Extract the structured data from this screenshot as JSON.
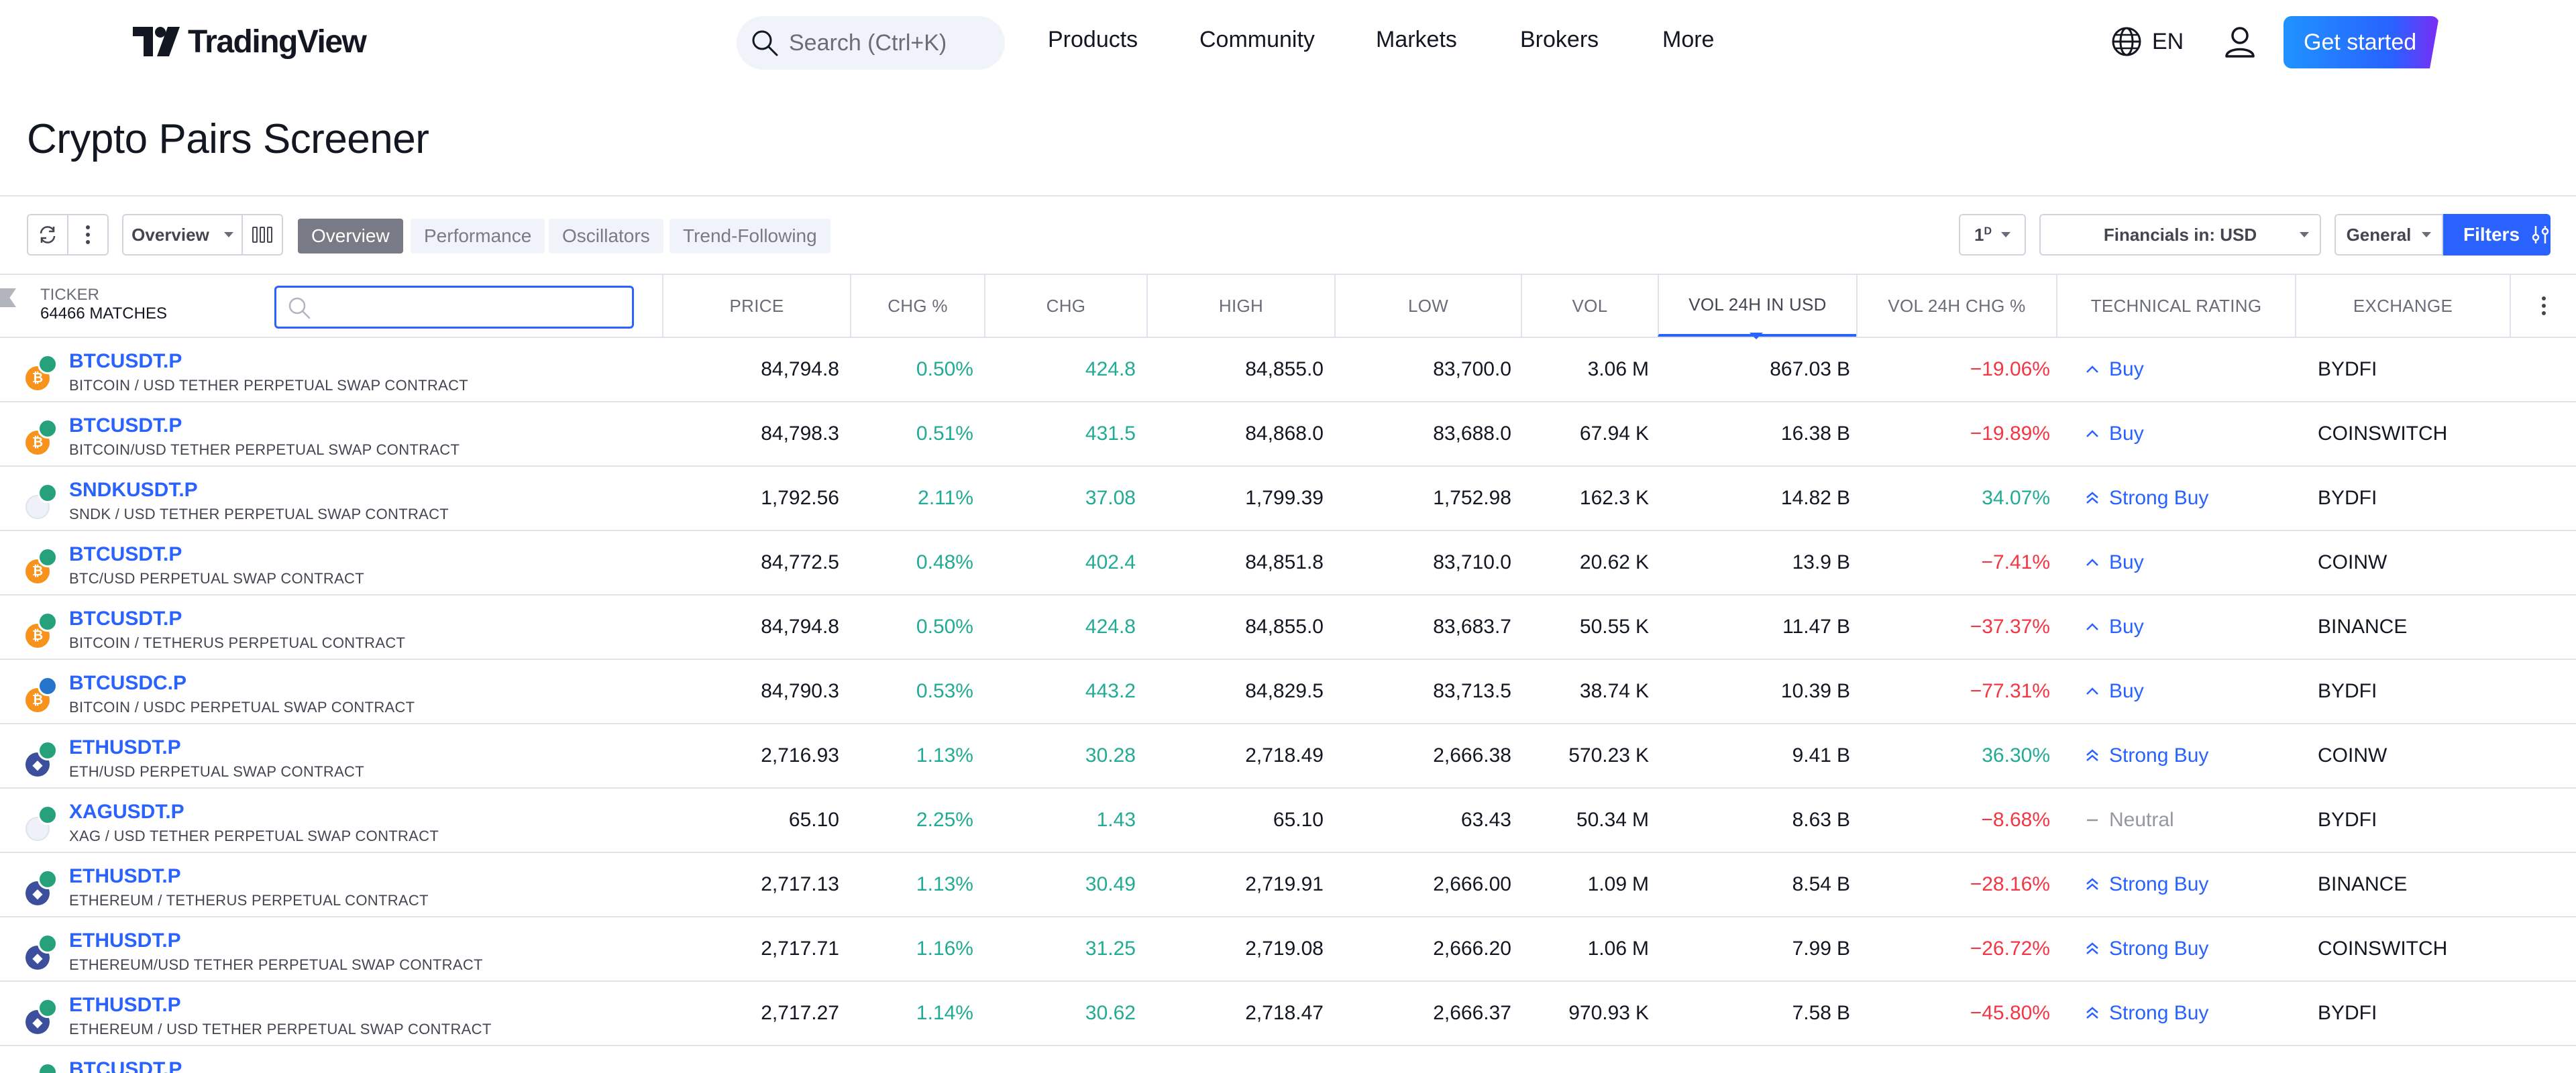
{
  "header": {
    "logo_text": "TradingView",
    "search_placeholder": "Search (Ctrl+K)",
    "nav": [
      "Products",
      "Community",
      "Markets",
      "Brokers",
      "More"
    ],
    "language": "EN",
    "cta": "Get started"
  },
  "page_title": "Crypto Pairs Screener",
  "toolbar": {
    "view_select": "Overview",
    "tabs": [
      "Overview",
      "Performance",
      "Oscillators",
      "Trend-Following"
    ],
    "active_tab": "Overview",
    "interval": "1",
    "interval_sup": "D",
    "financials": "Financials in: USD",
    "general": "General",
    "filters": "Filters"
  },
  "table": {
    "ticker_label": "TICKER",
    "matches": "64466 MATCHES",
    "columns": [
      "PRICE",
      "CHG %",
      "CHG",
      "HIGH",
      "LOW",
      "VOL",
      "VOL 24H IN USD",
      "VOL 24H CHG %",
      "TECHNICAL RATING",
      "EXCHANGE"
    ],
    "rows": [
      {
        "symbol": "BTCUSDT.P",
        "desc": "BITCOIN / USD TETHER PERPETUAL SWAP CONTRACT",
        "coin": "btc",
        "quote": "usdt",
        "price": "84,794.8",
        "chg_pct": "0.50%",
        "chg": "424.8",
        "high": "84,855.0",
        "low": "83,700.0",
        "vol": "3.06",
        "vol_u": "M",
        "vol24": "867.03",
        "vol24_u": "B",
        "vol24chg": "−19.06%",
        "vol24chg_sign": "neg",
        "rating": "Buy",
        "rating_type": "buy",
        "exchange": "BYDFI"
      },
      {
        "symbol": "BTCUSDT.P",
        "desc": "BITCOIN/USD TETHER PERPETUAL SWAP CONTRACT",
        "coin": "btc",
        "quote": "usdt",
        "price": "84,798.3",
        "chg_pct": "0.51%",
        "chg": "431.5",
        "high": "84,868.0",
        "low": "83,688.0",
        "vol": "67.94",
        "vol_u": "K",
        "vol24": "16.38",
        "vol24_u": "B",
        "vol24chg": "−19.89%",
        "vol24chg_sign": "neg",
        "rating": "Buy",
        "rating_type": "buy",
        "exchange": "COINSWITCH"
      },
      {
        "symbol": "SNDKUSDT.P",
        "desc": "SNDK / USD TETHER PERPETUAL SWAP CONTRACT",
        "coin": "blank",
        "quote": "usdt",
        "price": "1,792.56",
        "chg_pct": "2.11%",
        "chg": "37.08",
        "high": "1,799.39",
        "low": "1,752.98",
        "vol": "162.3",
        "vol_u": "K",
        "vol24": "14.82",
        "vol24_u": "B",
        "vol24chg": "34.07%",
        "vol24chg_sign": "pos",
        "rating": "Strong Buy",
        "rating_type": "strong",
        "exchange": "BYDFI"
      },
      {
        "symbol": "BTCUSDT.P",
        "desc": "BTC/USD PERPETUAL SWAP CONTRACT",
        "coin": "btc",
        "quote": "usdt",
        "price": "84,772.5",
        "chg_pct": "0.48%",
        "chg": "402.4",
        "high": "84,851.8",
        "low": "83,710.0",
        "vol": "20.62",
        "vol_u": "K",
        "vol24": "13.9",
        "vol24_u": "B",
        "vol24chg": "−7.41%",
        "vol24chg_sign": "neg",
        "rating": "Buy",
        "rating_type": "buy",
        "exchange": "COINW"
      },
      {
        "symbol": "BTCUSDT.P",
        "desc": "BITCOIN / TETHERUS PERPETUAL CONTRACT",
        "coin": "btc",
        "quote": "usdt",
        "price": "84,794.8",
        "chg_pct": "0.50%",
        "chg": "424.8",
        "high": "84,855.0",
        "low": "83,683.7",
        "vol": "50.55",
        "vol_u": "K",
        "vol24": "11.47",
        "vol24_u": "B",
        "vol24chg": "−37.37%",
        "vol24chg_sign": "neg",
        "rating": "Buy",
        "rating_type": "buy",
        "exchange": "BINANCE"
      },
      {
        "symbol": "BTCUSDC.P",
        "desc": "BITCOIN / USDC PERPETUAL SWAP CONTRACT",
        "coin": "btc",
        "quote": "usdc",
        "price": "84,790.3",
        "chg_pct": "0.53%",
        "chg": "443.2",
        "high": "84,829.5",
        "low": "83,713.5",
        "vol": "38.74",
        "vol_u": "K",
        "vol24": "10.39",
        "vol24_u": "B",
        "vol24chg": "−77.31%",
        "vol24chg_sign": "neg",
        "rating": "Buy",
        "rating_type": "buy",
        "exchange": "BYDFI"
      },
      {
        "symbol": "ETHUSDT.P",
        "desc": "ETH/USD PERPETUAL SWAP CONTRACT",
        "coin": "eth",
        "quote": "usdt",
        "price": "2,716.93",
        "chg_pct": "1.13%",
        "chg": "30.28",
        "high": "2,718.49",
        "low": "2,666.38",
        "vol": "570.23",
        "vol_u": "K",
        "vol24": "9.41",
        "vol24_u": "B",
        "vol24chg": "36.30%",
        "vol24chg_sign": "pos",
        "rating": "Strong Buy",
        "rating_type": "strong",
        "exchange": "COINW"
      },
      {
        "symbol": "XAGUSDT.P",
        "desc": "XAG / USD TETHER PERPETUAL SWAP CONTRACT",
        "coin": "blank",
        "quote": "usdt",
        "price": "65.10",
        "chg_pct": "2.25%",
        "chg": "1.43",
        "high": "65.10",
        "low": "63.43",
        "vol": "50.34",
        "vol_u": "M",
        "vol24": "8.63",
        "vol24_u": "B",
        "vol24chg": "−8.68%",
        "vol24chg_sign": "neg",
        "rating": "Neutral",
        "rating_type": "neutral",
        "exchange": "BYDFI"
      },
      {
        "symbol": "ETHUSDT.P",
        "desc": "ETHEREUM / TETHERUS PERPETUAL CONTRACT",
        "coin": "eth",
        "quote": "usdt",
        "price": "2,717.13",
        "chg_pct": "1.13%",
        "chg": "30.49",
        "high": "2,719.91",
        "low": "2,666.00",
        "vol": "1.09",
        "vol_u": "M",
        "vol24": "8.54",
        "vol24_u": "B",
        "vol24chg": "−28.16%",
        "vol24chg_sign": "neg",
        "rating": "Strong Buy",
        "rating_type": "strong",
        "exchange": "BINANCE"
      },
      {
        "symbol": "ETHUSDT.P",
        "desc": "ETHEREUM/USD TETHER PERPETUAL SWAP CONTRACT",
        "coin": "eth",
        "quote": "usdt",
        "price": "2,717.71",
        "chg_pct": "1.16%",
        "chg": "31.25",
        "high": "2,719.08",
        "low": "2,666.20",
        "vol": "1.06",
        "vol_u": "M",
        "vol24": "7.99",
        "vol24_u": "B",
        "vol24chg": "−26.72%",
        "vol24chg_sign": "neg",
        "rating": "Strong Buy",
        "rating_type": "strong",
        "exchange": "COINSWITCH"
      },
      {
        "symbol": "ETHUSDT.P",
        "desc": "ETHEREUM / USD TETHER PERPETUAL SWAP CONTRACT",
        "coin": "eth",
        "quote": "usdt",
        "price": "2,717.27",
        "chg_pct": "1.14%",
        "chg": "30.62",
        "high": "2,718.47",
        "low": "2,666.37",
        "vol": "970.93",
        "vol_u": "K",
        "vol24": "7.58",
        "vol24_u": "B",
        "vol24chg": "−45.80%",
        "vol24chg_sign": "neg",
        "rating": "Strong Buy",
        "rating_type": "strong",
        "exchange": "BYDFI"
      },
      {
        "symbol": "BTCUSDT.P",
        "desc": "",
        "coin": "btc",
        "quote": "usdt",
        "price": "",
        "chg_pct": "",
        "chg": "",
        "high": "",
        "low": "",
        "vol": "",
        "vol_u": "",
        "vol24": "",
        "vol24_u": "",
        "vol24chg": "",
        "vol24chg_sign": "neg",
        "rating": "",
        "rating_type": "buy",
        "exchange": ""
      }
    ]
  },
  "colors": {
    "accent": "#2962ff",
    "positive": "#22ab94",
    "negative": "#f23645",
    "neutral": "#9598a1"
  }
}
